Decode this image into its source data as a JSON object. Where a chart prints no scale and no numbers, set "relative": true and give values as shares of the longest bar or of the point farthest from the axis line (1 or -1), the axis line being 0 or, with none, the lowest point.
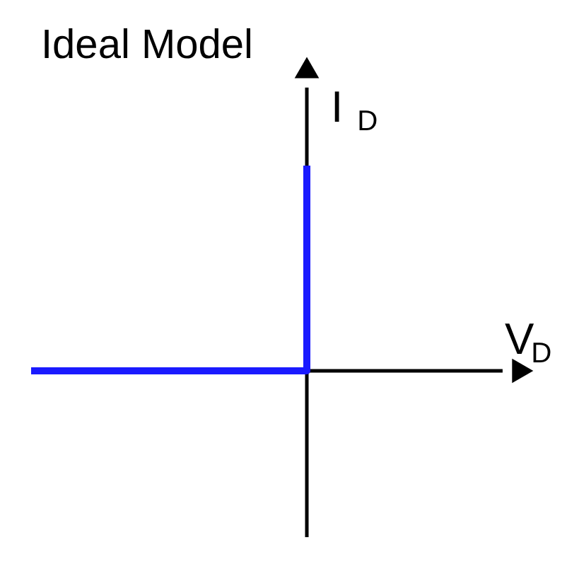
{
  "chart_data": {
    "type": "step",
    "title": "Ideal Model",
    "xlabel": "V$_{D}$",
    "ylabel": "I$_{D}$",
    "relative": true,
    "categories": [
      null,
      null
    ],
    "values": [
      0,
      1
    ],
    "color": "#1a1aff"
  }
}
